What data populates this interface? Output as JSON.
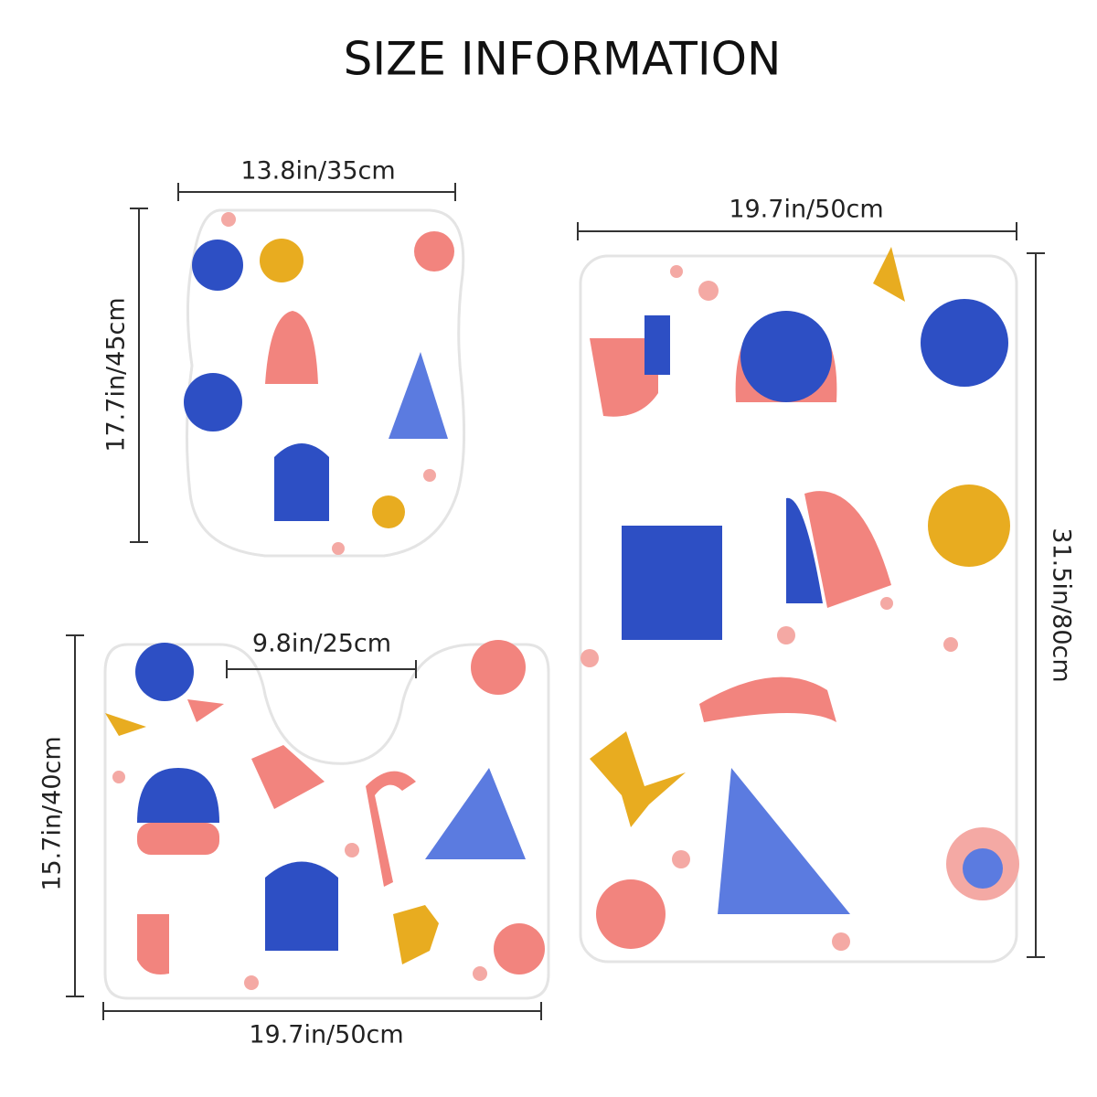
{
  "title": "SIZE INFORMATION",
  "lid": {
    "width": "13.8in/35cm",
    "height": "17.7in/45cm"
  },
  "rug": {
    "width": "19.7in/50cm",
    "height": "31.5in/80cm"
  },
  "contour": {
    "cutout": "9.8in/25cm",
    "height": "15.7in/40cm",
    "width": "19.7in/50cm"
  }
}
